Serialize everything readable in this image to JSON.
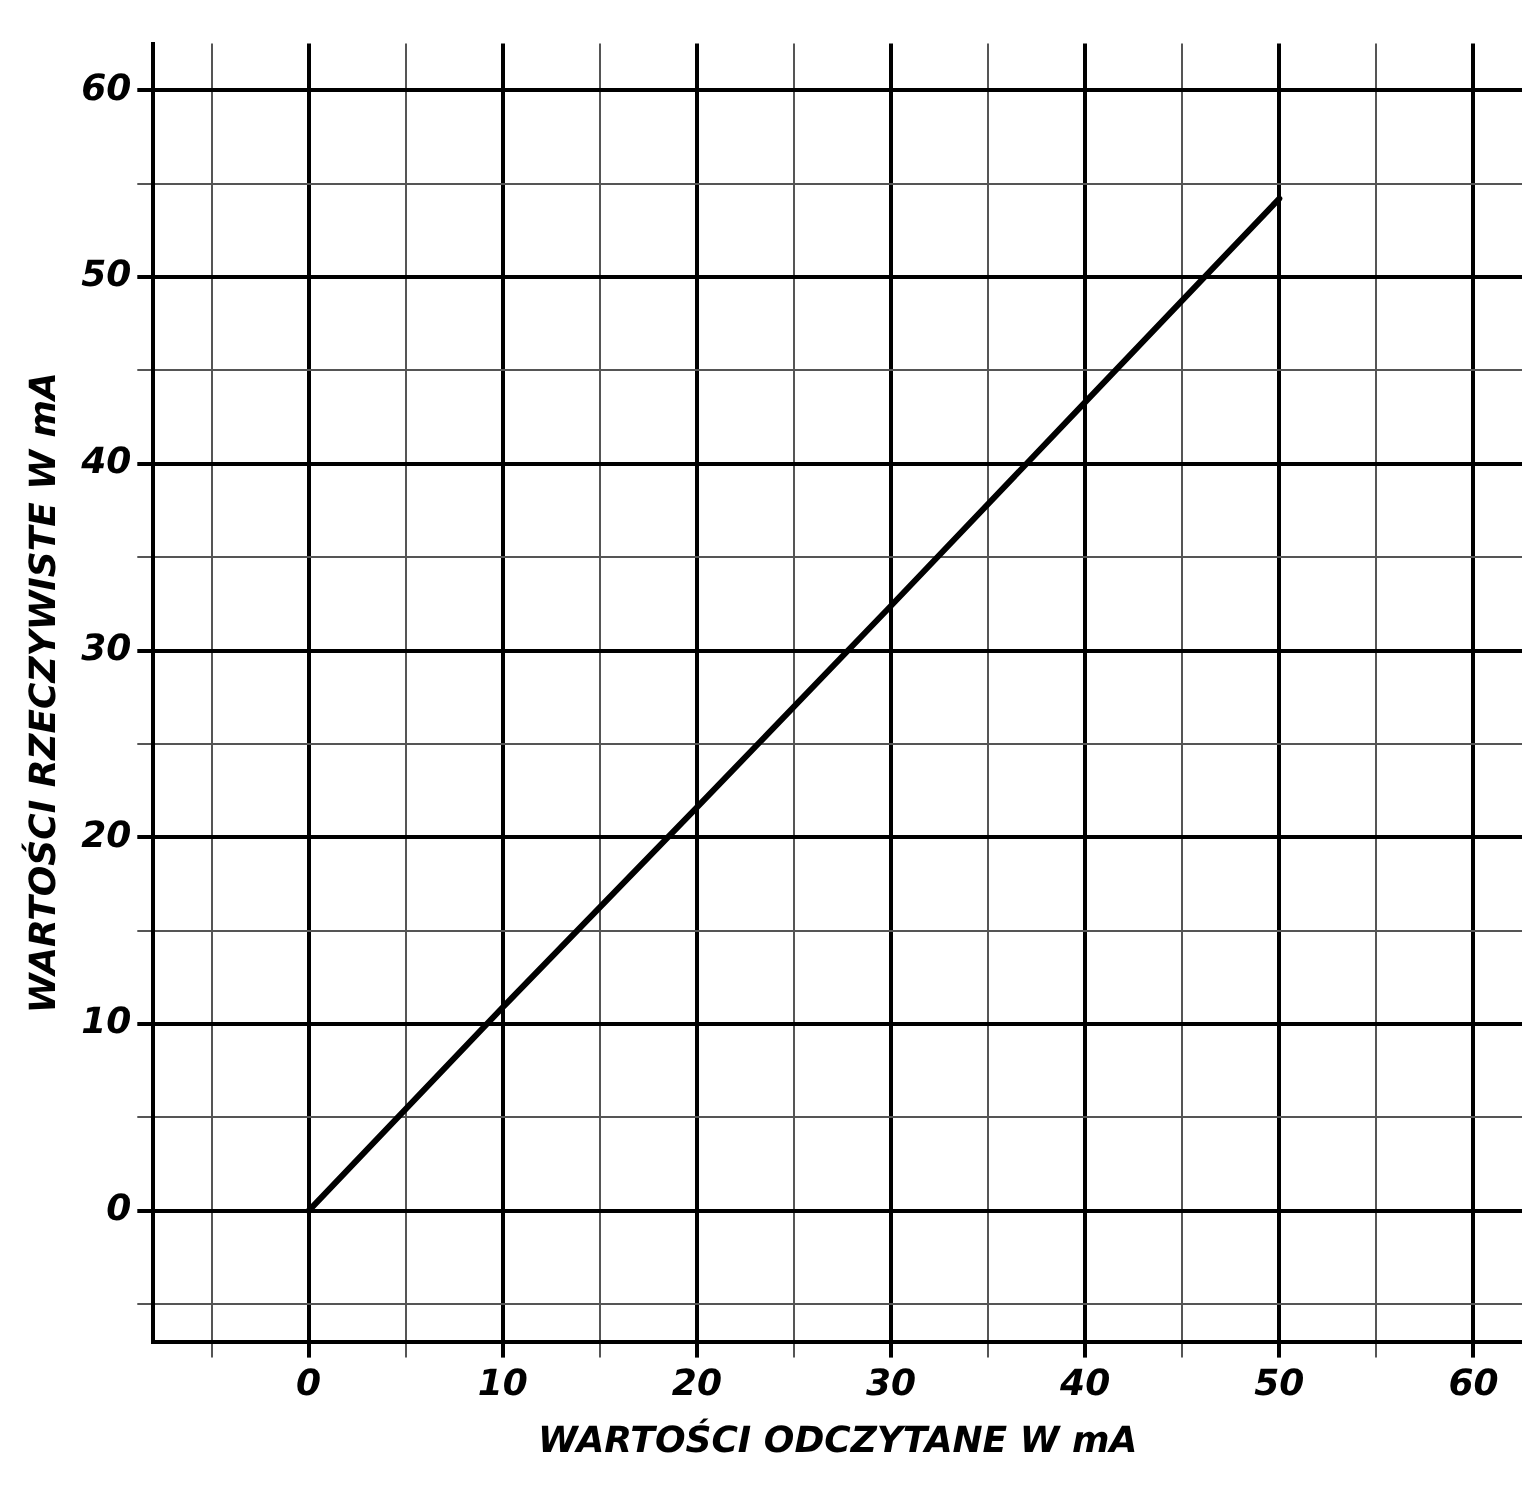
{
  "chart_data": {
    "type": "line",
    "xlabel": "WARTOŚCI ODCZYTANE W mA",
    "ylabel": "WARTOŚCI RZECZYWISTE W mA",
    "x": [
      0,
      10,
      20,
      30,
      40,
      50
    ],
    "series": [
      {
        "color": "#000000",
        "values": [
          0,
          10.9,
          21.6,
          32.4,
          43.3,
          54.2
        ]
      }
    ],
    "xlim": [
      -8,
      62.5
    ],
    "ylim": [
      -7,
      62.5
    ],
    "xticks": [
      {
        "value": -5,
        "label": null
      },
      0,
      {
        "value": 5,
        "label": null
      },
      10,
      {
        "value": 15,
        "label": null
      },
      20,
      {
        "value": 25,
        "label": null
      },
      30,
      {
        "value": 35,
        "label": null
      },
      40,
      {
        "value": 45,
        "label": null
      },
      50,
      {
        "value": 55,
        "label": null
      },
      60
    ],
    "yticks": [
      {
        "value": -5,
        "label": null
      },
      0,
      {
        "value": 5,
        "label": null
      },
      10,
      {
        "value": 15,
        "label": null
      },
      20,
      {
        "value": 25,
        "label": null
      },
      30,
      {
        "value": 35,
        "label": null
      },
      40,
      {
        "value": 45,
        "label": null
      },
      50,
      {
        "value": 55,
        "label": null
      },
      60
    ],
    "grid": true,
    "legend": false,
    "marker": "none",
    "line_style": "solid"
  }
}
